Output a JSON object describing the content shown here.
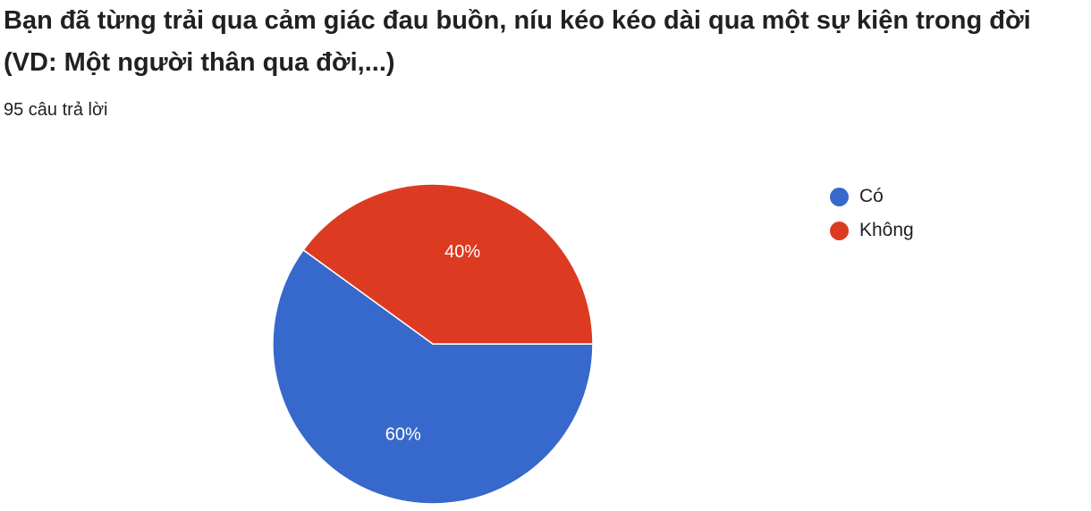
{
  "question": {
    "title": "Bạn đã từng trải qua cảm giác đau buồn, níu kéo kéo dài qua một sự kiện trong đời (VD: Một người thân qua đời,...)",
    "response_count": "95 câu trả lời"
  },
  "chart_data": {
    "type": "pie",
    "title": "Bạn đã từng trải qua cảm giác đau buồn, níu kéo kéo dài qua một sự kiện trong đời (VD: Một người thân qua đời,...)",
    "categories": [
      "Có",
      "Không"
    ],
    "values": [
      60,
      40
    ],
    "value_labels": [
      "60%",
      "40%"
    ],
    "colors": [
      "#3769cc",
      "#dc3b21"
    ],
    "legend_position": "right"
  }
}
